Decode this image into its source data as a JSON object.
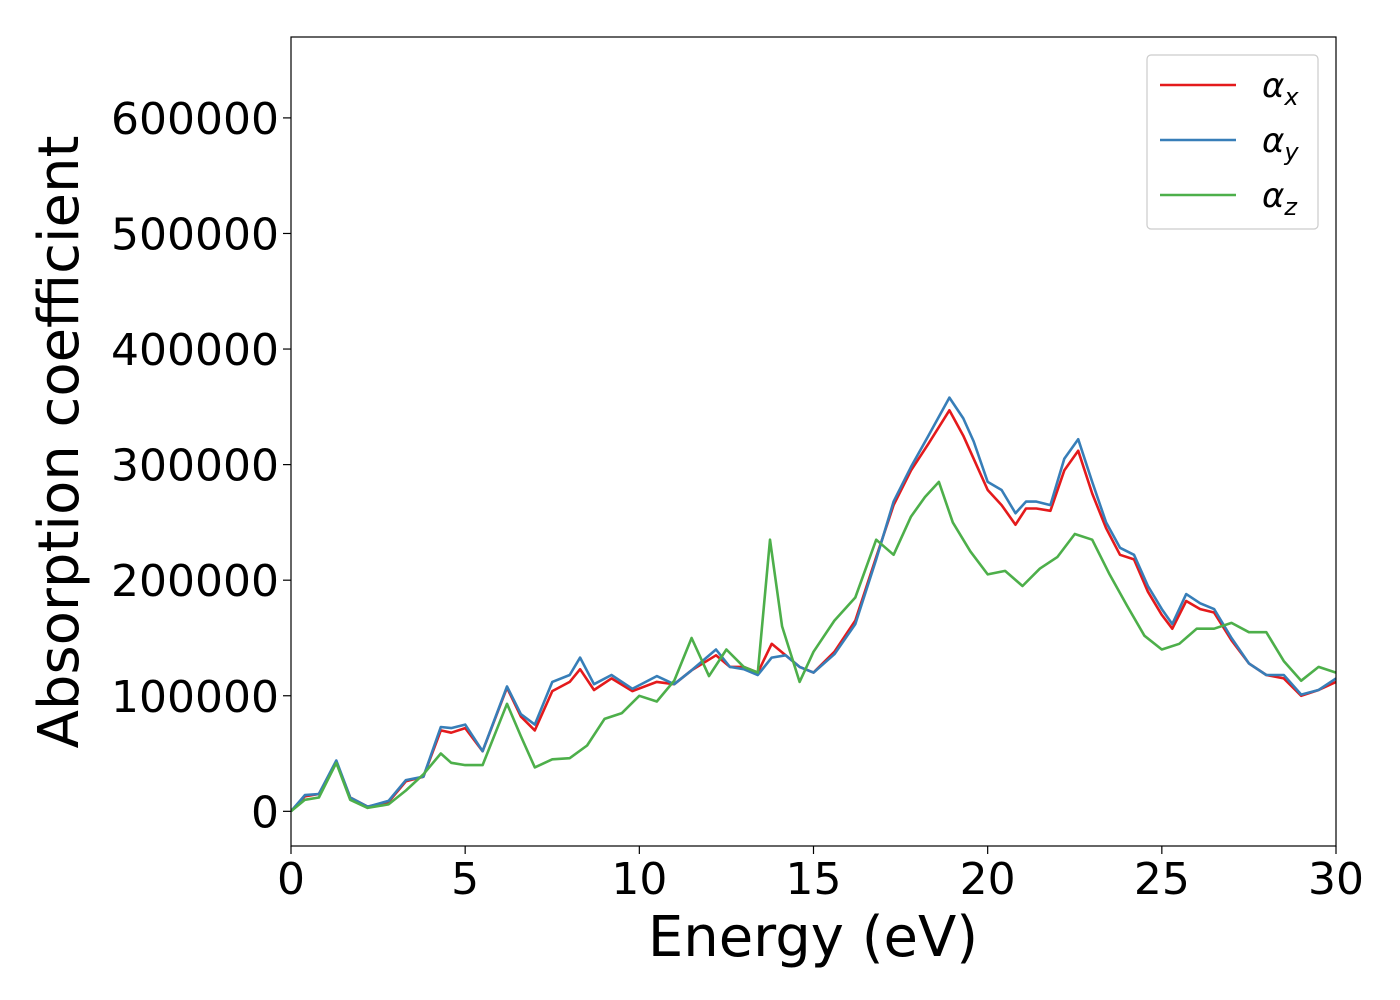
{
  "chart_data": {
    "type": "line",
    "xlabel": "Energy (eV)",
    "ylabel": "Absorption coefficient",
    "xlim": [
      0,
      30
    ],
    "ylim": [
      -30000,
      670000
    ],
    "xticks": [
      0,
      5,
      10,
      15,
      20,
      25,
      30
    ],
    "xtick_labels": [
      "0",
      "5",
      "10",
      "15",
      "20",
      "25",
      "30"
    ],
    "yticks": [
      0,
      100000,
      200000,
      300000,
      400000,
      500000,
      600000
    ],
    "ytick_labels": [
      "0",
      "100000",
      "200000",
      "300000",
      "400000",
      "500000",
      "600000"
    ],
    "grid": false,
    "legend_position": "top-right",
    "series": [
      {
        "name": "α",
        "subscript": "x",
        "color": "#e41a1c",
        "x": [
          0,
          0.4,
          0.8,
          1.3,
          1.7,
          2.2,
          2.8,
          3.3,
          3.8,
          4.3,
          4.6,
          5.0,
          5.5,
          6.2,
          6.6,
          7.0,
          7.5,
          8.0,
          8.3,
          8.7,
          9.2,
          9.8,
          10.5,
          11.0,
          11.5,
          12.2,
          12.6,
          13.0,
          13.4,
          13.8,
          14.2,
          14.6,
          15.0,
          15.6,
          16.2,
          16.8,
          17.3,
          17.8,
          18.3,
          18.9,
          19.3,
          19.6,
          20.0,
          20.4,
          20.8,
          21.1,
          21.4,
          21.8,
          22.2,
          22.6,
          23.0,
          23.4,
          23.8,
          24.2,
          24.6,
          25.0,
          25.3,
          25.7,
          26.1,
          26.5,
          27.0,
          27.5,
          28.0,
          28.5,
          29.0,
          29.5,
          30.0
        ],
        "y": [
          0,
          13000,
          15000,
          43000,
          12000,
          4000,
          8000,
          26000,
          30000,
          70000,
          68000,
          72000,
          52000,
          107000,
          82000,
          70000,
          104000,
          112000,
          123000,
          105000,
          115000,
          104000,
          112000,
          110000,
          122000,
          135000,
          125000,
          125000,
          120000,
          145000,
          135000,
          125000,
          120000,
          138000,
          165000,
          220000,
          265000,
          295000,
          318000,
          347000,
          325000,
          305000,
          278000,
          265000,
          248000,
          262000,
          262000,
          260000,
          295000,
          312000,
          275000,
          245000,
          222000,
          218000,
          190000,
          170000,
          158000,
          182000,
          175000,
          172000,
          148000,
          128000,
          118000,
          115000,
          100000,
          105000,
          112000
        ]
      },
      {
        "name": "α",
        "subscript": "y",
        "color": "#377eb8",
        "x": [
          0,
          0.4,
          0.8,
          1.3,
          1.7,
          2.2,
          2.8,
          3.3,
          3.8,
          4.3,
          4.6,
          5.0,
          5.5,
          6.2,
          6.6,
          7.0,
          7.5,
          8.0,
          8.3,
          8.7,
          9.2,
          9.8,
          10.5,
          11.0,
          11.5,
          12.2,
          12.6,
          13.0,
          13.4,
          13.8,
          14.2,
          14.6,
          15.0,
          15.6,
          16.2,
          16.8,
          17.3,
          17.8,
          18.3,
          18.9,
          19.3,
          19.6,
          20.0,
          20.4,
          20.8,
          21.1,
          21.4,
          21.8,
          22.2,
          22.6,
          23.0,
          23.4,
          23.8,
          24.2,
          24.6,
          25.0,
          25.3,
          25.7,
          26.1,
          26.5,
          27.0,
          27.5,
          28.0,
          28.5,
          29.0,
          29.5,
          30.0
        ],
        "y": [
          0,
          14000,
          15000,
          44000,
          12000,
          4000,
          9000,
          27000,
          30000,
          73000,
          72000,
          75000,
          52000,
          108000,
          84000,
          75000,
          112000,
          118000,
          133000,
          110000,
          118000,
          106000,
          117000,
          110000,
          122000,
          140000,
          125000,
          123000,
          118000,
          133000,
          135000,
          125000,
          120000,
          136000,
          162000,
          218000,
          268000,
          298000,
          325000,
          358000,
          340000,
          320000,
          285000,
          278000,
          258000,
          268000,
          268000,
          265000,
          305000,
          322000,
          285000,
          250000,
          228000,
          222000,
          195000,
          175000,
          162000,
          188000,
          180000,
          175000,
          150000,
          128000,
          118000,
          118000,
          101000,
          105000,
          115000
        ]
      },
      {
        "name": "α",
        "subscript": "z",
        "color": "#4daf4a",
        "x": [
          0,
          0.4,
          0.8,
          1.3,
          1.7,
          2.2,
          2.8,
          3.3,
          3.8,
          4.3,
          4.6,
          5.0,
          5.5,
          6.2,
          6.6,
          7.0,
          7.5,
          8.0,
          8.5,
          9.0,
          9.5,
          10.0,
          10.5,
          11.0,
          11.5,
          12.0,
          12.5,
          13.0,
          13.4,
          13.75,
          14.1,
          14.6,
          15.0,
          15.6,
          16.2,
          16.8,
          17.3,
          17.8,
          18.2,
          18.6,
          19.0,
          19.5,
          20.0,
          20.5,
          21.0,
          21.5,
          22.0,
          22.5,
          23.0,
          23.5,
          24.0,
          24.5,
          25.0,
          25.5,
          26.0,
          26.5,
          27.0,
          27.5,
          28.0,
          28.5,
          29.0,
          29.5,
          30.0
        ],
        "y": [
          0,
          10000,
          12000,
          42000,
          10000,
          3000,
          6000,
          18000,
          32000,
          50000,
          42000,
          40000,
          40000,
          93000,
          65000,
          38000,
          45000,
          46000,
          57000,
          80000,
          85000,
          100000,
          95000,
          113000,
          150000,
          117000,
          140000,
          125000,
          120000,
          235000,
          160000,
          112000,
          138000,
          165000,
          185000,
          235000,
          222000,
          255000,
          272000,
          285000,
          250000,
          225000,
          205000,
          208000,
          195000,
          210000,
          220000,
          240000,
          235000,
          205000,
          178000,
          152000,
          140000,
          145000,
          158000,
          158000,
          163000,
          155000,
          155000,
          130000,
          113000,
          125000,
          120000
        ]
      }
    ]
  }
}
